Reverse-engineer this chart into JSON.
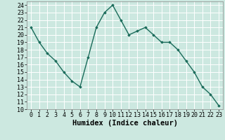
{
  "x": [
    0,
    1,
    2,
    3,
    4,
    5,
    6,
    7,
    8,
    9,
    10,
    11,
    12,
    13,
    14,
    15,
    16,
    17,
    18,
    19,
    20,
    21,
    22,
    23
  ],
  "y": [
    21,
    19,
    17.5,
    16.5,
    15,
    13.8,
    13,
    17,
    21,
    23,
    24,
    22,
    20,
    20.5,
    21,
    20,
    19,
    19,
    18,
    16.5,
    15,
    13,
    12,
    10.5
  ],
  "xlabel": "Humidex (Indice chaleur)",
  "ylim": [
    10,
    24.5
  ],
  "xlim": [
    -0.5,
    23.5
  ],
  "yticks": [
    10,
    11,
    12,
    13,
    14,
    15,
    16,
    17,
    18,
    19,
    20,
    21,
    22,
    23,
    24
  ],
  "xticks": [
    0,
    1,
    2,
    3,
    4,
    5,
    6,
    7,
    8,
    9,
    10,
    11,
    12,
    13,
    14,
    15,
    16,
    17,
    18,
    19,
    20,
    21,
    22,
    23
  ],
  "line_color": "#1a6b5a",
  "marker": "D",
  "marker_size": 1.8,
  "line_width": 1.0,
  "bg_color": "#cce8e0",
  "grid_color": "#ffffff",
  "xlabel_fontsize": 7.5,
  "tick_fontsize": 6.0
}
